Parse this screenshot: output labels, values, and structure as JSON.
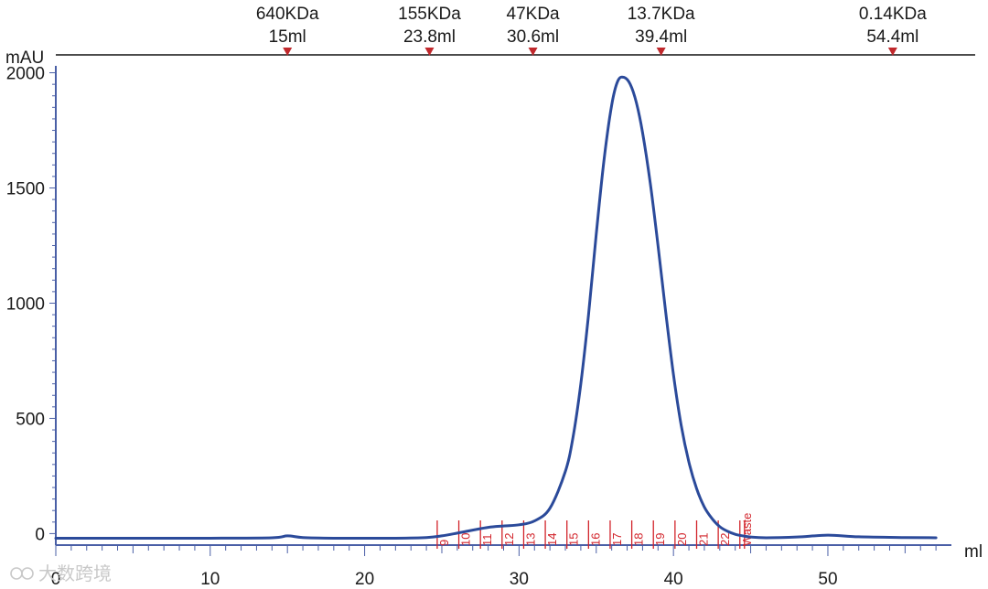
{
  "chart_data": {
    "type": "line",
    "title": "",
    "xlabel": "ml",
    "ylabel": "mAU",
    "xlim": [
      0,
      58
    ],
    "ylim": [
      -50,
      2030
    ],
    "x_ticks": [
      0,
      10,
      20,
      30,
      40,
      50
    ],
    "x_tick_labels": [
      "0",
      "10",
      "20",
      "30",
      "40",
      "50"
    ],
    "y_ticks": [
      0,
      500,
      1000,
      1500,
      2000
    ],
    "y_tick_labels": [
      "0",
      "500",
      "1000",
      "1500",
      "2000"
    ],
    "grid": false,
    "series": [
      {
        "color": "#2b4a9a",
        "x": [
          0,
          5,
          10,
          14,
          15,
          16,
          18,
          20,
          22,
          24,
          25,
          26,
          27,
          28,
          29,
          30,
          31,
          32,
          33,
          33.5,
          34,
          34.5,
          35,
          35.5,
          36,
          36.4,
          36.8,
          37.2,
          37.6,
          38,
          38.5,
          39,
          39.5,
          40,
          40.5,
          41,
          41.5,
          42,
          42.5,
          43,
          43.5,
          44,
          44.5,
          45,
          46,
          48,
          50,
          52,
          55,
          57
        ],
        "y": [
          -20,
          -20,
          -20,
          -18,
          -10,
          -17,
          -20,
          -20,
          -20,
          -17,
          -10,
          2,
          15,
          27,
          33,
          38,
          55,
          110,
          270,
          420,
          650,
          950,
          1300,
          1620,
          1860,
          1965,
          1980,
          1950,
          1870,
          1740,
          1520,
          1250,
          960,
          690,
          470,
          310,
          195,
          115,
          65,
          30,
          10,
          -3,
          -10,
          -15,
          -18,
          -15,
          -7,
          -14,
          -17,
          -18
        ]
      }
    ],
    "fractions": {
      "label_color": "#d2232a",
      "boundaries": [
        24.7,
        26.1,
        27.5,
        28.9,
        30.3,
        31.7,
        33.1,
        34.5,
        35.9,
        37.3,
        38.7,
        40.1,
        41.5,
        42.9,
        44.3,
        44.6
      ],
      "labels": [
        "9",
        "10",
        "11",
        "12",
        "13",
        "14",
        "15",
        "16",
        "17",
        "18",
        "19",
        "20",
        "21",
        "22",
        "Waste"
      ]
    },
    "markers": {
      "color": "#c0282c",
      "items": [
        {
          "x": 15,
          "mass": "640KDa",
          "volume": "15ml"
        },
        {
          "x": 24.2,
          "mass": "155KDa",
          "volume": "23.8ml"
        },
        {
          "x": 30.9,
          "mass": "47KDa",
          "volume": "30.6ml"
        },
        {
          "x": 39.2,
          "mass": "13.7KDa",
          "volume": "39.4ml"
        },
        {
          "x": 54.2,
          "mass": "0.14KDa",
          "volume": "54.4ml"
        }
      ]
    }
  },
  "watermark": "大数跨境"
}
